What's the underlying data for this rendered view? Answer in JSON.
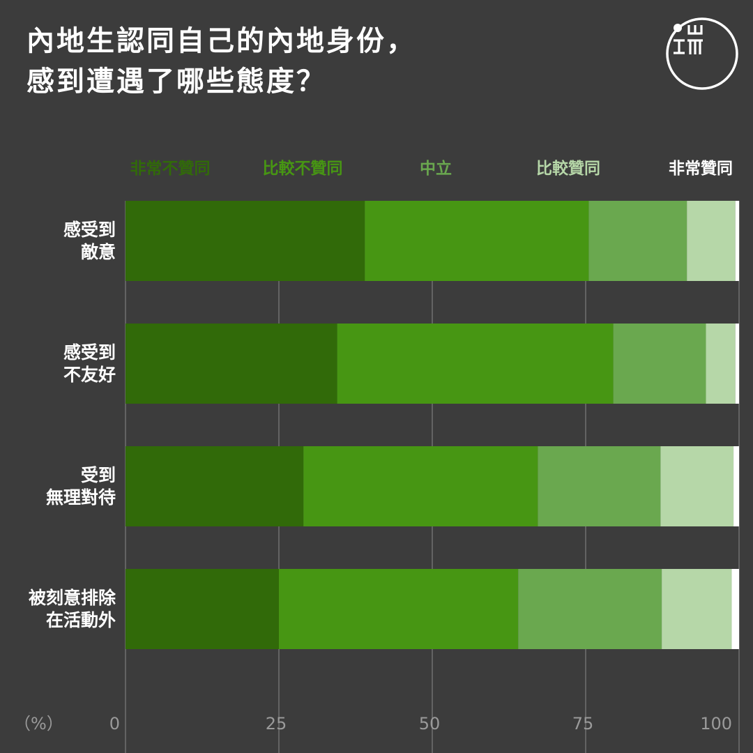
{
  "title_lines": [
    "內地生認同自己的內地身份，",
    "感到遭遇了哪些態度？"
  ],
  "logo": {
    "text": "端",
    "icon": "initium-logo-icon"
  },
  "chart_data": {
    "type": "bar",
    "orientation": "horizontal",
    "stacked": true,
    "categories": [
      [
        "感受到",
        "敵意"
      ],
      [
        "感受到",
        "不友好"
      ],
      [
        "受到",
        "無理對待"
      ],
      [
        "被刻意排除",
        "在活動外"
      ]
    ],
    "series": [
      {
        "name": "非常不贊同",
        "color": "#316a09",
        "values": [
          39,
          34.5,
          29,
          25
        ]
      },
      {
        "name": "比較不贊同",
        "color": "#479613",
        "values": [
          36.5,
          45,
          38.2,
          39
        ]
      },
      {
        "name": "中立",
        "color": "#6aa84f",
        "values": [
          16,
          15.1,
          20,
          23.4
        ]
      },
      {
        "name": "比較贊同",
        "color": "#b6d7a8",
        "values": [
          7.9,
          4.8,
          11.9,
          11.4
        ]
      },
      {
        "name": "非常贊同",
        "color": "#ffffff",
        "values": [
          0.6,
          0.6,
          0.9,
          1.2
        ]
      }
    ],
    "legend_colors": [
      "#316a09",
      "#479613",
      "#6aa84f",
      "#b6d7a8",
      "#ffffff"
    ],
    "x_unit_label": "（%）",
    "x_ticks": [
      "0",
      "25",
      "50",
      "75",
      "100"
    ],
    "xlim": [
      0,
      100
    ],
    "grid": true,
    "legend_position": "top"
  }
}
